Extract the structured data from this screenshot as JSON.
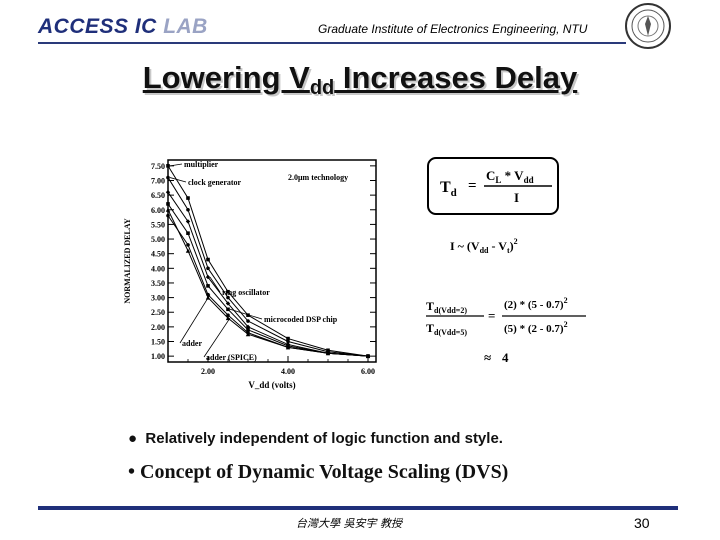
{
  "header": {
    "lab_a": "ACCESS IC ",
    "lab_b": "LAB",
    "institute": "Graduate Institute of Electronics Engineering, NTU"
  },
  "slide": {
    "title_a": "Lowering V",
    "title_sub": "dd",
    "title_b": " Increases Delay"
  },
  "chart_data": {
    "type": "line",
    "title": "",
    "xlabel": "V_dd (volts)",
    "ylabel": "NORMALIZED DELAY",
    "x_ticks": [
      "2.00",
      "4.00",
      "6.00"
    ],
    "y_ticks": [
      "1.00",
      "1.50",
      "2.00",
      "2.50",
      "3.00",
      "3.50",
      "4.00",
      "4.50",
      "5.00",
      "5.50",
      "6.00",
      "6.50",
      "7.00",
      "7.50"
    ],
    "xlim": [
      1.0,
      6.2
    ],
    "ylim": [
      0.8,
      7.7
    ],
    "annotation": "2.0μm technology",
    "series": [
      {
        "name": "multiplier",
        "x": [
          1.0,
          1.5,
          2.0,
          2.5,
          3.0,
          4.0,
          5.0,
          6.0
        ],
        "y": [
          7.5,
          6.4,
          4.3,
          3.2,
          2.4,
          1.6,
          1.2,
          1.0
        ]
      },
      {
        "name": "clock generator",
        "x": [
          1.0,
          1.5,
          2.0,
          2.5,
          3.0,
          4.0,
          5.0,
          6.0
        ],
        "y": [
          7.1,
          6.0,
          4.0,
          3.0,
          2.2,
          1.5,
          1.15,
          1.0
        ]
      },
      {
        "name": "ring oscillator",
        "x": [
          1.0,
          1.5,
          2.0,
          2.5,
          3.0,
          4.0,
          5.0,
          6.0
        ],
        "y": [
          6.6,
          5.6,
          3.7,
          2.8,
          2.0,
          1.4,
          1.1,
          1.0
        ]
      },
      {
        "name": "microcoded DSP chip",
        "x": [
          1.0,
          1.5,
          2.0,
          2.5,
          3.0,
          4.0,
          5.0,
          6.0
        ],
        "y": [
          6.2,
          5.2,
          3.4,
          2.6,
          1.9,
          1.35,
          1.1,
          1.0
        ]
      },
      {
        "name": "adder",
        "x": [
          1.0,
          1.5,
          2.0,
          2.5,
          3.0,
          4.0,
          5.0,
          6.0
        ],
        "y": [
          5.8,
          4.8,
          3.1,
          2.4,
          1.8,
          1.3,
          1.1,
          1.0
        ]
      },
      {
        "name": "adder (SPICE)",
        "x": [
          1.0,
          1.5,
          2.0,
          2.5,
          3.0,
          4.0,
          5.0,
          6.0
        ],
        "y": [
          6.0,
          4.6,
          3.0,
          2.3,
          1.75,
          1.3,
          1.1,
          1.0
        ]
      }
    ]
  },
  "formula": {
    "td_T": "T",
    "td_d": "d",
    "td_eq": "=",
    "num_1": "C",
    "num_L": "L",
    "num_2": " * V",
    "num_dd": "dd",
    "den": "I",
    "current_1": "I ~ (V",
    "current_dd": "dd",
    "current_2": " - V",
    "current_t": "t",
    "current_3": ")",
    "current_exp": "2",
    "ratio_num_T": "T",
    "ratio_num_sub": "d(Vdd=2)",
    "ratio_den_T": "T",
    "ratio_den_sub": "d(Vdd=5)",
    "ratio_eq": "=",
    "ratio_rhs_num": "(2) * (5 - 0.7)",
    "ratio_rhs_num_exp": "2",
    "ratio_rhs_den": "(5) * (2 - 0.7)",
    "ratio_rhs_den_exp": "2",
    "approx": "≈",
    "result": "4"
  },
  "bullets": {
    "b1_marker": "●",
    "b1_text": "Relatively independent of logic function and style.",
    "b2_marker": "•",
    "b2_text": "Concept of Dynamic Voltage Scaling (DVS)"
  },
  "footer": {
    "author": "台灣大學 吳安宇 教授",
    "page": "30"
  },
  "colors": {
    "lab_blue": "#1f2f7a",
    "rule": "#1f2f7a"
  }
}
